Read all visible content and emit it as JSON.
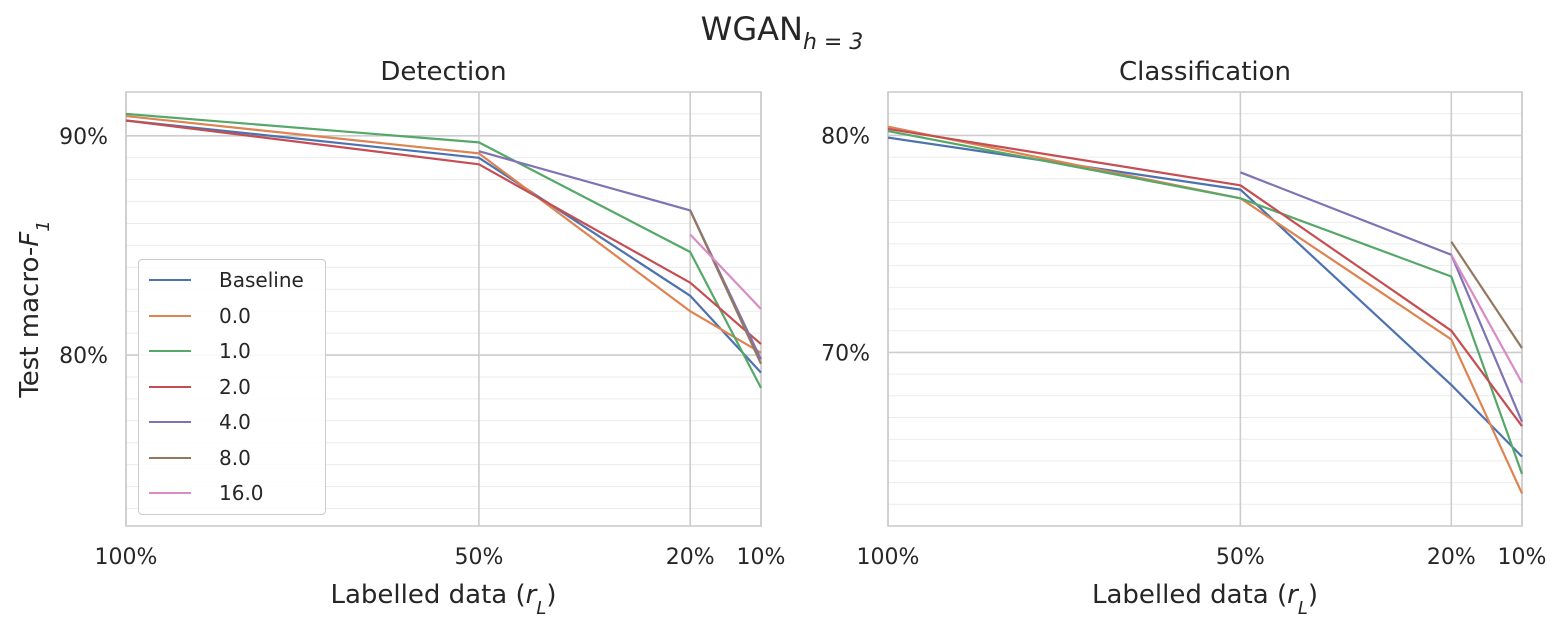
{
  "figure": {
    "title_main": "WGAN",
    "title_sub": "h = 3"
  },
  "chart_data": [
    {
      "type": "line",
      "title": "Detection",
      "xlabel": "Labelled data (r_L)",
      "ylabel": "Test macro-F_1",
      "x_ticks": [
        "100%",
        "50%",
        "20%",
        "10%"
      ],
      "y_ticks": [
        "80%",
        "90%"
      ],
      "y_major": [
        80,
        90
      ],
      "ylim": [
        72.2,
        92.0
      ],
      "grid": true,
      "legend_position": "lower-left",
      "series": [
        {
          "name": "Baseline",
          "color": "#4c72b0",
          "x": [
            100,
            50,
            20,
            10
          ],
          "y": [
            90.7,
            89.0,
            82.7,
            79.2
          ]
        },
        {
          "name": "0.0",
          "color": "#dd8452",
          "x": [
            100,
            50,
            20,
            10
          ],
          "y": [
            90.9,
            89.2,
            82.0,
            80.1
          ]
        },
        {
          "name": "1.0",
          "color": "#55a868",
          "x": [
            100,
            50,
            20,
            10
          ],
          "y": [
            91.0,
            89.7,
            84.7,
            78.5
          ]
        },
        {
          "name": "2.0",
          "color": "#c44e52",
          "x": [
            100,
            50,
            20,
            10
          ],
          "y": [
            90.7,
            88.7,
            83.3,
            80.5
          ]
        },
        {
          "name": "4.0",
          "color": "#8172b3",
          "x": [
            50,
            20,
            10
          ],
          "y": [
            89.3,
            86.6,
            79.8
          ]
        },
        {
          "name": "8.0",
          "color": "#937860",
          "x": [
            20,
            10
          ],
          "y": [
            86.6,
            79.6
          ]
        },
        {
          "name": "16.0",
          "color": "#da8bc3",
          "x": [
            20,
            10
          ],
          "y": [
            85.5,
            82.1
          ]
        }
      ]
    },
    {
      "type": "line",
      "title": "Classification",
      "xlabel": "Labelled data (r_L)",
      "x_ticks": [
        "100%",
        "50%",
        "20%",
        "10%"
      ],
      "y_ticks": [
        "70%",
        "80%"
      ],
      "y_major": [
        70,
        80
      ],
      "ylim": [
        62.0,
        82.0
      ],
      "grid": true,
      "series": [
        {
          "name": "Baseline",
          "color": "#4c72b0",
          "x": [
            100,
            50,
            20,
            10
          ],
          "y": [
            79.9,
            77.5,
            68.5,
            65.2
          ]
        },
        {
          "name": "0.0",
          "color": "#dd8452",
          "x": [
            100,
            50,
            20,
            10
          ],
          "y": [
            80.4,
            77.1,
            70.6,
            63.5
          ]
        },
        {
          "name": "1.0",
          "color": "#55a868",
          "x": [
            100,
            50,
            20,
            10
          ],
          "y": [
            80.2,
            77.1,
            73.5,
            64.4
          ]
        },
        {
          "name": "2.0",
          "color": "#c44e52",
          "x": [
            100,
            50,
            20,
            10
          ],
          "y": [
            80.3,
            77.7,
            71.0,
            66.6
          ]
        },
        {
          "name": "4.0",
          "color": "#8172b3",
          "x": [
            50,
            20,
            10
          ],
          "y": [
            78.3,
            74.5,
            66.8
          ]
        },
        {
          "name": "8.0",
          "color": "#937860",
          "x": [
            20,
            10
          ],
          "y": [
            75.1,
            70.2
          ]
        },
        {
          "name": "16.0",
          "color": "#da8bc3",
          "x": [
            20,
            10
          ],
          "y": [
            74.5,
            68.6
          ]
        }
      ]
    }
  ]
}
